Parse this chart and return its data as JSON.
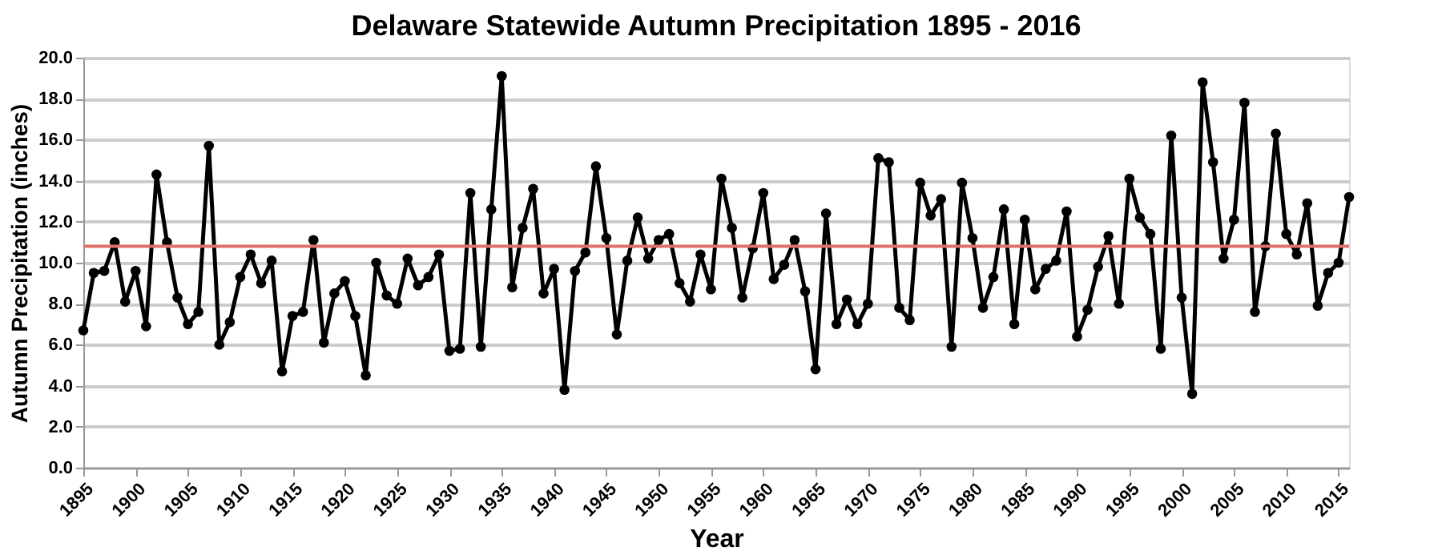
{
  "chart_data": {
    "type": "line",
    "title": "Delaware Statewide Autumn Precipitation 1895 - 2016",
    "xlabel": "Year",
    "ylabel": "Autumn Precipitation (inches)",
    "x": [
      1895,
      1896,
      1897,
      1898,
      1899,
      1900,
      1901,
      1902,
      1903,
      1904,
      1905,
      1906,
      1907,
      1908,
      1909,
      1910,
      1911,
      1912,
      1913,
      1914,
      1915,
      1916,
      1917,
      1918,
      1919,
      1920,
      1921,
      1922,
      1923,
      1924,
      1925,
      1926,
      1927,
      1928,
      1929,
      1930,
      1931,
      1932,
      1933,
      1934,
      1935,
      1936,
      1937,
      1938,
      1939,
      1940,
      1941,
      1942,
      1943,
      1944,
      1945,
      1946,
      1947,
      1948,
      1949,
      1950,
      1951,
      1952,
      1953,
      1954,
      1955,
      1956,
      1957,
      1958,
      1959,
      1960,
      1961,
      1962,
      1963,
      1964,
      1965,
      1966,
      1967,
      1968,
      1969,
      1970,
      1971,
      1972,
      1973,
      1974,
      1975,
      1976,
      1977,
      1978,
      1979,
      1980,
      1981,
      1982,
      1983,
      1984,
      1985,
      1986,
      1987,
      1988,
      1989,
      1990,
      1991,
      1992,
      1993,
      1994,
      1995,
      1996,
      1997,
      1998,
      1999,
      2000,
      2001,
      2002,
      2003,
      2004,
      2005,
      2006,
      2007,
      2008,
      2009,
      2010,
      2011,
      2012,
      2013,
      2014,
      2015,
      2016
    ],
    "series": [
      {
        "color": "#000000",
        "values": [
          6.7,
          9.5,
          9.6,
          11.0,
          8.1,
          9.6,
          6.9,
          14.3,
          11.0,
          8.3,
          7.0,
          7.6,
          15.7,
          6.0,
          7.1,
          9.3,
          10.4,
          9.0,
          10.1,
          4.7,
          7.4,
          7.6,
          11.1,
          6.1,
          8.5,
          9.1,
          7.4,
          4.5,
          10.0,
          8.4,
          8.0,
          10.2,
          8.9,
          9.3,
          10.4,
          5.7,
          5.8,
          13.4,
          5.9,
          12.6,
          19.1,
          8.8,
          11.7,
          13.6,
          8.5,
          9.7,
          3.8,
          9.6,
          10.5,
          14.7,
          11.2,
          6.5,
          10.1,
          12.2,
          10.2,
          11.1,
          11.4,
          9.0,
          8.1,
          10.4,
          8.7,
          14.1,
          11.7,
          8.3,
          10.7,
          13.4,
          9.2,
          9.9,
          11.1,
          8.6,
          4.8,
          12.4,
          7.0,
          8.2,
          7.0,
          8.0,
          15.1,
          14.9,
          7.8,
          7.2,
          13.9,
          12.3,
          13.1,
          5.9,
          13.9,
          11.2,
          7.8,
          9.3,
          12.6,
          7.0,
          12.1,
          8.7,
          9.7,
          10.1,
          12.5,
          6.4,
          7.7,
          9.8,
          11.3,
          8.0,
          14.1,
          12.2,
          11.4,
          5.8,
          16.2,
          8.3,
          3.6,
          18.8,
          14.9,
          10.2,
          12.1,
          17.8,
          7.6,
          10.8,
          16.3,
          11.4,
          10.4,
          12.9,
          7.9,
          9.5,
          10.0,
          13.2
        ]
      }
    ],
    "ref_lines": [
      {
        "axis": "y",
        "value": 10.8,
        "color": "#e0706a",
        "line_style": "solid"
      }
    ],
    "xlim": [
      1895,
      2016
    ],
    "xticks": [
      1895,
      1900,
      1905,
      1910,
      1915,
      1920,
      1925,
      1930,
      1935,
      1940,
      1945,
      1950,
      1955,
      1960,
      1965,
      1970,
      1975,
      1980,
      1985,
      1990,
      1995,
      2000,
      2005,
      2010,
      2015
    ],
    "ylim": [
      0,
      20
    ],
    "yticks": [
      {
        "value": 0,
        "label": "0.0"
      },
      {
        "value": 2,
        "label": "2.0"
      },
      {
        "value": 4,
        "label": "4.0"
      },
      {
        "value": 6,
        "label": "6.0"
      },
      {
        "value": 8,
        "label": "8.0"
      },
      {
        "value": 10,
        "label": "10.0"
      },
      {
        "value": 12,
        "label": "12.0"
      },
      {
        "value": 14,
        "label": "14.0"
      },
      {
        "value": 16,
        "label": "16.0"
      },
      {
        "value": 18,
        "label": "18.0"
      },
      {
        "value": 20,
        "label": "20.0"
      }
    ],
    "grid": "y",
    "marker": "circle",
    "line_style": "solid"
  }
}
